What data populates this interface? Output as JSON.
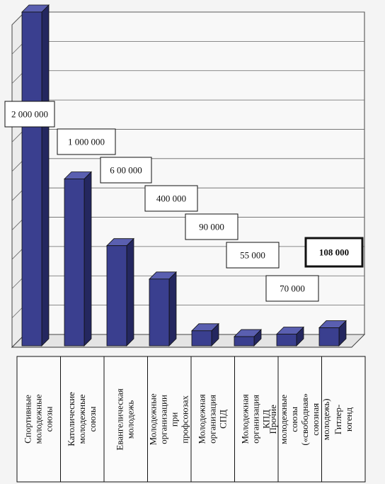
{
  "chart_data": {
    "type": "bar",
    "categories": [
      "Спортивные\nмолодежные союзы",
      "Католические\nмолодежные союзы",
      "Евангелическая\nмолодежь",
      "Молодежные\nорганизации при\nпрофсоюзах",
      "Молодежная\nорганизация СПД",
      "Молодежная\nорганизация КПД",
      "Прочие молодежные\nсоюзы («свободная»\nсоюзная молодежь)",
      "Гитлер-югенд"
    ],
    "values": [
      2000000,
      1000000,
      600000,
      400000,
      90000,
      55000,
      70000,
      108000
    ],
    "data_labels": [
      "2 000 000",
      "1 000 000",
      "6 00 000",
      "400 000",
      "90 000",
      "55 000",
      "70 000",
      "108 000"
    ],
    "highlighted_label_index": 7,
    "grid": true,
    "legend": "none",
    "colors": {
      "bar_front": "#3a3f8f",
      "bar_side": "#24275f",
      "bar_top": "#5a5fb0",
      "wall": "#f8f8f8",
      "grid": "#666666"
    }
  }
}
